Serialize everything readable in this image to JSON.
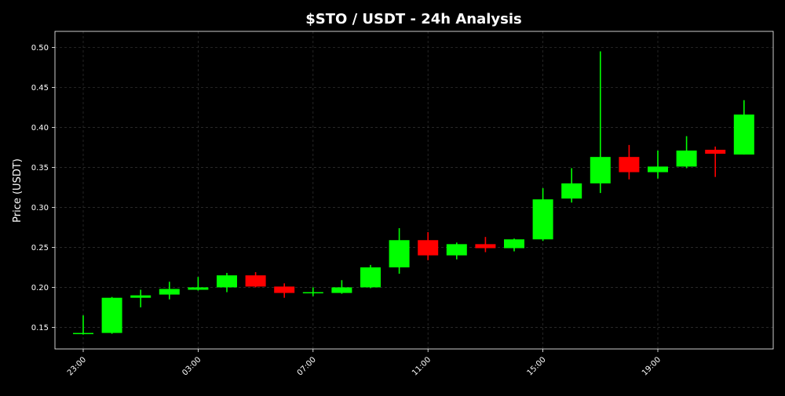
{
  "chart_data": {
    "type": "candlestick",
    "title": "$STO / USDT - 24h Analysis",
    "xlabel": "",
    "ylabel": "Price (USDT)",
    "ylim": [
      0.123,
      0.52
    ],
    "grid": true,
    "colors": {
      "up": "#00ff00",
      "down": "#ff0000",
      "background": "#000000",
      "text": "#ffffff"
    },
    "x_ticks": [
      {
        "index": 0,
        "label": "23:00"
      },
      {
        "index": 4,
        "label": "03:00"
      },
      {
        "index": 8,
        "label": "07:00"
      },
      {
        "index": 12,
        "label": "11:00"
      },
      {
        "index": 16,
        "label": "15:00"
      },
      {
        "index": 20,
        "label": "19:00"
      }
    ],
    "y_ticks": [
      0.15,
      0.2,
      0.25,
      0.3,
      0.35,
      0.4,
      0.45,
      0.5
    ],
    "y_tick_labels": [
      "0.15",
      "0.20",
      "0.25",
      "0.30",
      "0.35",
      "0.40",
      "0.45",
      "0.50"
    ],
    "candles": [
      {
        "time": "23:00",
        "open": 0.142,
        "high": 0.165,
        "low": 0.141,
        "close": 0.143
      },
      {
        "time": "00:00",
        "open": 0.143,
        "high": 0.188,
        "low": 0.142,
        "close": 0.187
      },
      {
        "time": "01:00",
        "open": 0.187,
        "high": 0.197,
        "low": 0.175,
        "close": 0.19
      },
      {
        "time": "02:00",
        "open": 0.191,
        "high": 0.207,
        "low": 0.185,
        "close": 0.198
      },
      {
        "time": "03:00",
        "open": 0.197,
        "high": 0.213,
        "low": 0.196,
        "close": 0.2
      },
      {
        "time": "04:00",
        "open": 0.2,
        "high": 0.218,
        "low": 0.194,
        "close": 0.215
      },
      {
        "time": "05:00",
        "open": 0.215,
        "high": 0.219,
        "low": 0.2,
        "close": 0.201
      },
      {
        "time": "06:00",
        "open": 0.201,
        "high": 0.205,
        "low": 0.187,
        "close": 0.193
      },
      {
        "time": "07:00",
        "open": 0.193,
        "high": 0.2,
        "low": 0.189,
        "close": 0.194
      },
      {
        "time": "08:00",
        "open": 0.193,
        "high": 0.209,
        "low": 0.192,
        "close": 0.2
      },
      {
        "time": "09:00",
        "open": 0.2,
        "high": 0.228,
        "low": 0.199,
        "close": 0.225
      },
      {
        "time": "10:00",
        "open": 0.225,
        "high": 0.274,
        "low": 0.217,
        "close": 0.259
      },
      {
        "time": "11:00",
        "open": 0.259,
        "high": 0.269,
        "low": 0.234,
        "close": 0.24
      },
      {
        "time": "12:00",
        "open": 0.24,
        "high": 0.256,
        "low": 0.235,
        "close": 0.254
      },
      {
        "time": "13:00",
        "open": 0.254,
        "high": 0.263,
        "low": 0.244,
        "close": 0.249
      },
      {
        "time": "14:00",
        "open": 0.249,
        "high": 0.261,
        "low": 0.245,
        "close": 0.26
      },
      {
        "time": "15:00",
        "open": 0.26,
        "high": 0.324,
        "low": 0.258,
        "close": 0.31
      },
      {
        "time": "16:00",
        "open": 0.311,
        "high": 0.349,
        "low": 0.306,
        "close": 0.33
      },
      {
        "time": "17:00",
        "open": 0.33,
        "high": 0.495,
        "low": 0.318,
        "close": 0.363
      },
      {
        "time": "18:00",
        "open": 0.363,
        "high": 0.378,
        "low": 0.335,
        "close": 0.344
      },
      {
        "time": "19:00",
        "open": 0.344,
        "high": 0.371,
        "low": 0.336,
        "close": 0.351
      },
      {
        "time": "20:00",
        "open": 0.351,
        "high": 0.389,
        "low": 0.349,
        "close": 0.371
      },
      {
        "time": "21:00",
        "open": 0.372,
        "high": 0.376,
        "low": 0.338,
        "close": 0.367
      },
      {
        "time": "22:00",
        "open": 0.366,
        "high": 0.434,
        "low": 0.366,
        "close": 0.416
      }
    ]
  }
}
